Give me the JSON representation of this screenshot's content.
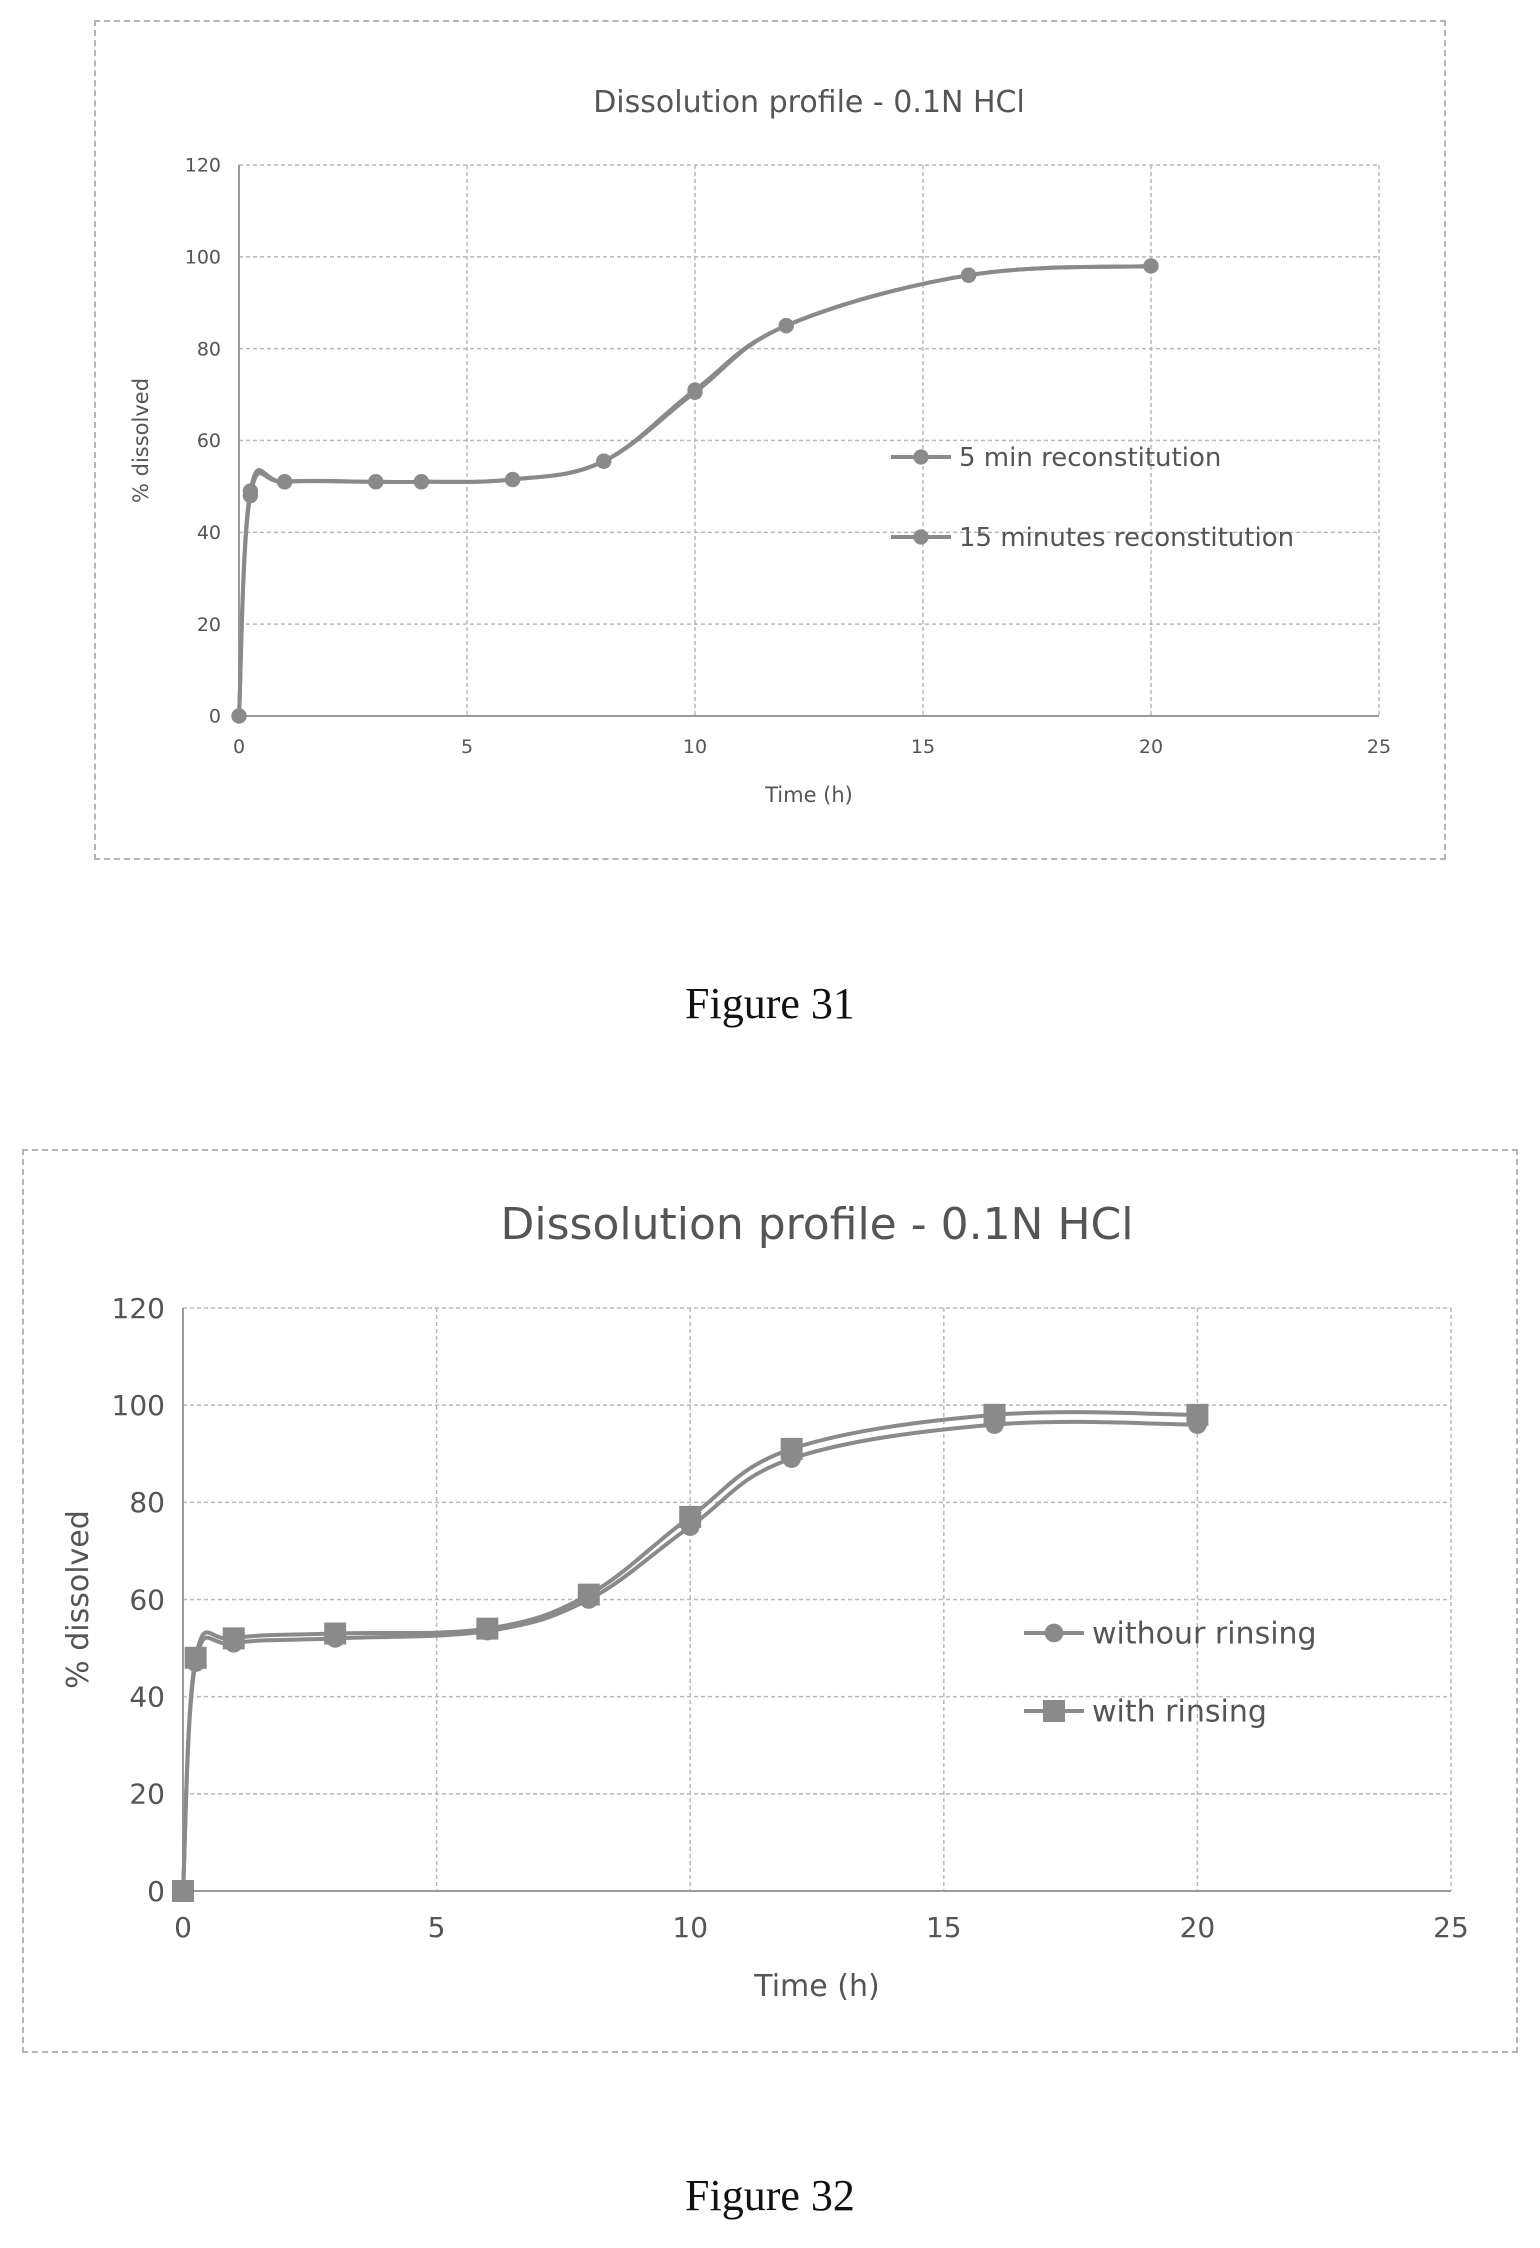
{
  "figures": [
    {
      "caption": "Figure 31"
    },
    {
      "caption": "Figure 32"
    }
  ],
  "colors": {
    "series": "#8a8a8a",
    "grid": "#b8b8b8",
    "axis": "#9a9a9a",
    "text": "#555555"
  },
  "chart_data": [
    {
      "type": "line",
      "title": "Dissolution profile - 0.1N HCl",
      "xlabel": "Time (h)",
      "ylabel": "% dissolved",
      "xlim": [
        0,
        25
      ],
      "ylim": [
        0,
        120
      ],
      "xticks": [
        0,
        5,
        10,
        15,
        20,
        25
      ],
      "yticks": [
        0,
        20,
        40,
        60,
        80,
        100,
        120
      ],
      "grid": true,
      "legend_position": "right",
      "series": [
        {
          "name": "5 min reconstitution",
          "marker": "circle",
          "x": [
            0,
            0.25,
            1,
            3,
            4,
            6,
            8,
            10,
            12,
            16,
            20
          ],
          "y": [
            0,
            49,
            51,
            51,
            51,
            51.5,
            55.5,
            71,
            85,
            96,
            98
          ]
        },
        {
          "name": "15 minutes reconstitution",
          "marker": "circle",
          "x": [
            0,
            0.25,
            1,
            3,
            4,
            6,
            8,
            10,
            12,
            16,
            20
          ],
          "y": [
            0,
            48,
            51,
            51,
            51,
            51.5,
            55.5,
            70.5,
            85,
            96,
            98
          ]
        }
      ]
    },
    {
      "type": "line",
      "title": "Dissolution profile - 0.1N HCl",
      "xlabel": "Time (h)",
      "ylabel": "% dissolved",
      "xlim": [
        0,
        25
      ],
      "ylim": [
        0,
        120
      ],
      "xticks": [
        0,
        5,
        10,
        15,
        20,
        25
      ],
      "yticks": [
        0,
        20,
        40,
        60,
        80,
        100,
        120
      ],
      "grid": true,
      "legend_position": "right",
      "series": [
        {
          "name": "withour rinsing",
          "marker": "circle",
          "x": [
            0,
            0.25,
            1,
            3,
            6,
            8,
            10,
            12,
            16,
            20
          ],
          "y": [
            0,
            47,
            51,
            52,
            53.5,
            60,
            75,
            89,
            96,
            96
          ]
        },
        {
          "name": "with rinsing",
          "marker": "square",
          "x": [
            0,
            0.25,
            1,
            3,
            6,
            8,
            10,
            12,
            16,
            20
          ],
          "y": [
            0,
            48,
            52,
            53,
            54,
            61,
            77,
            91,
            98,
            98
          ]
        }
      ]
    }
  ]
}
